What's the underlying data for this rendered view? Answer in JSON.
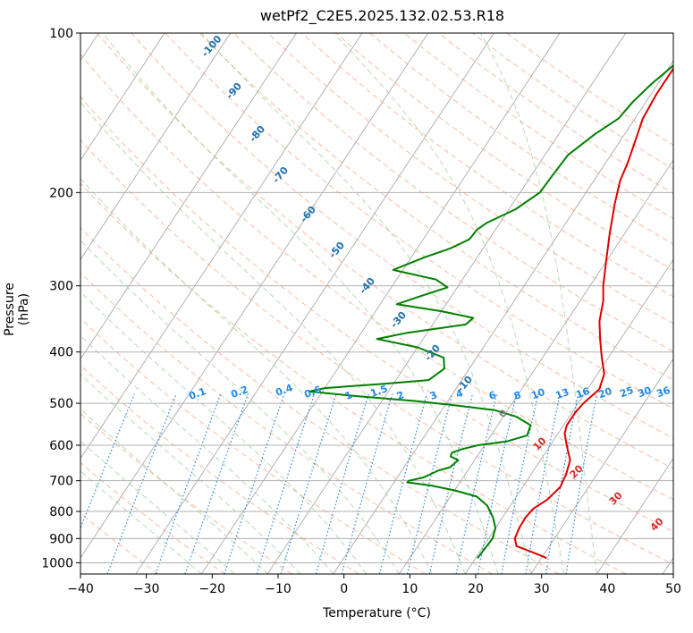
{
  "chart_data": {
    "type": "line",
    "title": "wetPf2_C2E5.2025.132.02.53.R18",
    "xlabel": "Temperature (°C)",
    "ylabel": "Pressure (hPa)",
    "xlim": [
      -40,
      50
    ],
    "ylim": [
      1050,
      100
    ],
    "y_scale": "log",
    "x_ticks": [
      -40,
      -30,
      -20,
      -10,
      0,
      10,
      20,
      30,
      40,
      50
    ],
    "y_ticks": [
      1000,
      900,
      800,
      700,
      600,
      500,
      400,
      300,
      200,
      100
    ],
    "grid": "horizontal at pressure ticks",
    "colors": {
      "temperature": "#e00000",
      "dewpoint": "#008000",
      "isotherm": "#a0a0a0",
      "dry_adiabat": "#f4a582",
      "moist_adiabat": "#9fd49f",
      "mixing_ratio": "#1e88e5",
      "hgz_labels": "#1f6fa8",
      "warm_labels": "#d62728",
      "zero_label": "#808080"
    },
    "series": [
      {
        "name": "",
        "kind": "temperature",
        "points": [
          [
            30.8,
            980
          ],
          [
            28,
            955
          ],
          [
            25,
            930
          ],
          [
            24,
            900
          ],
          [
            23.6,
            860
          ],
          [
            23.5,
            820
          ],
          [
            23.8,
            790
          ],
          [
            25,
            760
          ],
          [
            25.7,
            720
          ],
          [
            25.3,
            680
          ],
          [
            24.5,
            640
          ],
          [
            23,
            610
          ],
          [
            22,
            590
          ],
          [
            21,
            570
          ],
          [
            20.5,
            550
          ],
          [
            20.5,
            520
          ],
          [
            20.8,
            500
          ],
          [
            21.8,
            470
          ],
          [
            21,
            440
          ],
          [
            19,
            410
          ],
          [
            17,
            380
          ],
          [
            15,
            350
          ],
          [
            13.5,
            320
          ],
          [
            12,
            300
          ],
          [
            10,
            270
          ],
          [
            7.8,
            240
          ],
          [
            5.5,
            210
          ],
          [
            4,
            190
          ],
          [
            3.3,
            175
          ],
          [
            2.3,
            160
          ],
          [
            1.2,
            145
          ],
          [
            0.8,
            130
          ],
          [
            0.8,
            115
          ],
          [
            1.5,
            103
          ],
          [
            2.1,
            100
          ]
        ]
      },
      {
        "name": "",
        "kind": "dewpoint",
        "points": [
          [
            20.3,
            980
          ],
          [
            20.5,
            930
          ],
          [
            20.6,
            900
          ],
          [
            20,
            860
          ],
          [
            18.5,
            820
          ],
          [
            16.5,
            780
          ],
          [
            14,
            750
          ],
          [
            10,
            730
          ],
          [
            6,
            715
          ],
          [
            2,
            705
          ],
          [
            2.1,
            700
          ],
          [
            4,
            690
          ],
          [
            5.5,
            670
          ],
          [
            7,
            660
          ],
          [
            7.5,
            640
          ],
          [
            6,
            630
          ],
          [
            5.8,
            620
          ],
          [
            7,
            610
          ],
          [
            9,
            600
          ],
          [
            13,
            590
          ],
          [
            15.5,
            575
          ],
          [
            15,
            550
          ],
          [
            12,
            530
          ],
          [
            8,
            515
          ],
          [
            2,
            505
          ],
          [
            -5,
            495
          ],
          [
            -14,
            485
          ],
          [
            -22,
            475
          ],
          [
            -20,
            468
          ],
          [
            -12,
            460
          ],
          [
            -5,
            452
          ],
          [
            -3.8,
            430
          ],
          [
            -5,
            410
          ],
          [
            -10,
            392
          ],
          [
            -17,
            378
          ],
          [
            -13,
            368
          ],
          [
            -5,
            355
          ],
          [
            -4.5,
            345
          ],
          [
            -10,
            335
          ],
          [
            -17.5,
            325
          ],
          [
            -15,
            315
          ],
          [
            -11.5,
            302
          ],
          [
            -14,
            292
          ],
          [
            -21.5,
            280
          ],
          [
            -18,
            265
          ],
          [
            -15,
            255
          ],
          [
            -13,
            245
          ],
          [
            -12.8,
            235
          ],
          [
            -12,
            228
          ],
          [
            -9,
            215
          ],
          [
            -7,
            200
          ],
          [
            -6.8,
            185
          ],
          [
            -6.5,
            170
          ],
          [
            -4.5,
            155
          ],
          [
            -2.5,
            145
          ],
          [
            -2,
            135
          ],
          [
            -1,
            125
          ],
          [
            0.5,
            115
          ],
          [
            2,
            103
          ],
          [
            2.1,
            100
          ]
        ]
      }
    ],
    "annotations": {
      "hgz_isotherm_labels": [
        "-100",
        "-90",
        "-80",
        "-70",
        "-60",
        "-50",
        "-40",
        "-30",
        "-20",
        "-10"
      ],
      "mixing_ratio_labels": [
        "0.1",
        "0.2",
        "0.4",
        "0.6",
        "1",
        "1.5",
        "2",
        "3",
        "4",
        "6",
        "8",
        "10",
        "13",
        "16",
        "20",
        "25",
        "30",
        "36"
      ],
      "warm_isotherm_labels": [
        "0",
        "10",
        "20",
        "30",
        "40"
      ]
    }
  }
}
